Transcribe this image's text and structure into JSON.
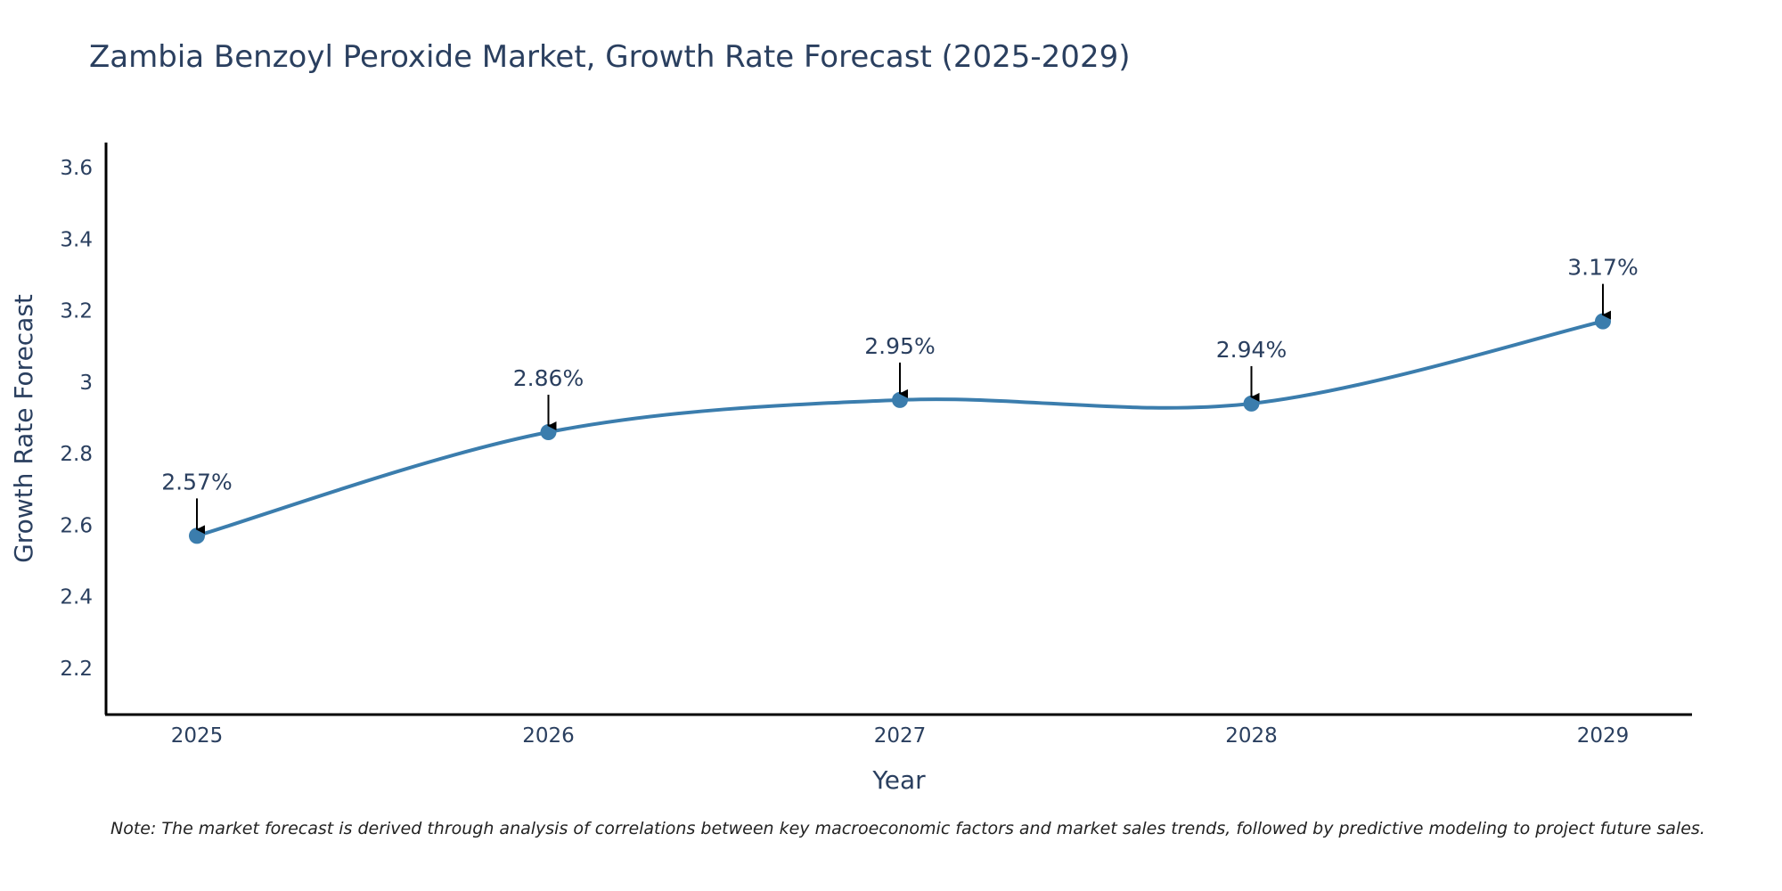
{
  "chart_data": {
    "type": "line",
    "title": "Zambia Benzoyl Peroxide Market, Growth Rate Forecast (2025-2029)",
    "xlabel": "Year",
    "ylabel": "Growth Rate Forecast",
    "categories": [
      "2025",
      "2026",
      "2027",
      "2028",
      "2029"
    ],
    "series": [
      {
        "name": "Growth Rate Forecast",
        "values": [
          2.57,
          2.86,
          2.95,
          2.94,
          3.17
        ],
        "labels": [
          "2.57%",
          "2.86%",
          "2.95%",
          "2.94%",
          "3.17%"
        ],
        "color": "#3b7dad"
      }
    ],
    "y_ticks": [
      2.2,
      2.4,
      2.6,
      2.8,
      3,
      3.2,
      3.4,
      3.6
    ],
    "y_tick_labels": [
      "2.2",
      "2.4",
      "2.6",
      "2.8",
      "3",
      "3.2",
      "3.4",
      "3.6"
    ],
    "ylim": [
      2.07,
      3.67
    ],
    "grid": false,
    "line_shape": "spline",
    "annotation_arrows": true
  },
  "note": "Note: The market forecast is derived through analysis of correlations between key macroeconomic factors and market sales trends, followed by predictive modeling to project future sales."
}
